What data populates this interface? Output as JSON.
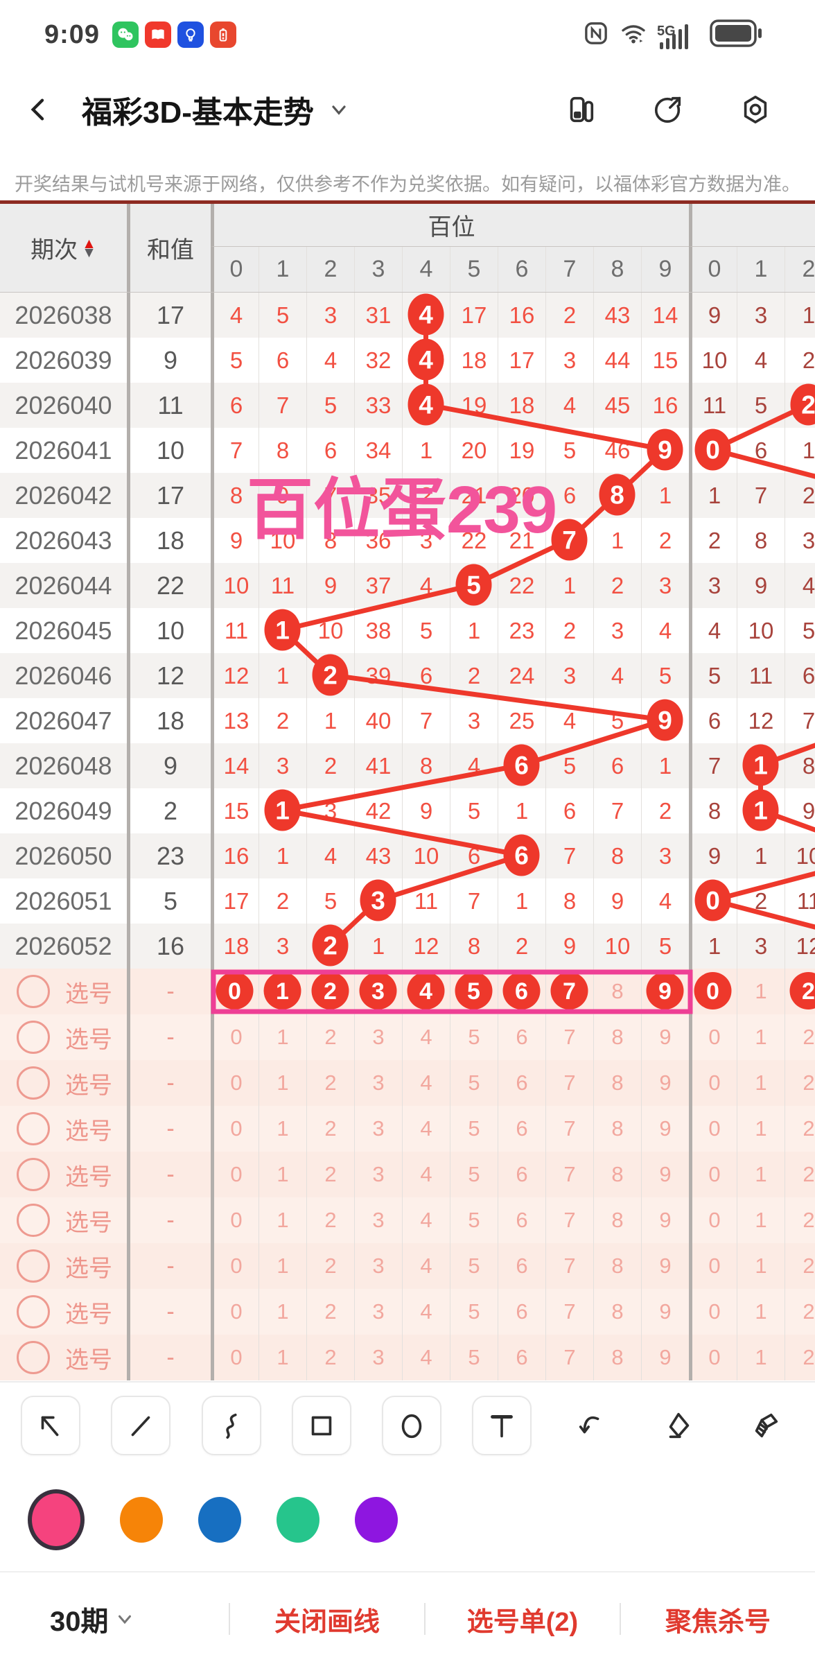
{
  "status_bar": {
    "time": "9:09",
    "app_icons": [
      "wechat-icon",
      "book-icon",
      "bulb-icon",
      "battery-alert-icon"
    ],
    "network_label": "5G"
  },
  "app_bar": {
    "title": "福彩3D-基本走势",
    "icons": [
      "split-screen-icon",
      "share-icon",
      "settings-icon"
    ]
  },
  "disclaimer": "开奖结果与试机号来源于网络，仅供参考不作为兑奖依据。如有疑问，以福体彩官方数据为准。",
  "trend_table": {
    "header": {
      "period": "期次",
      "sum": "和值",
      "section1": "百位",
      "section2": "",
      "ones_digits": [
        "0",
        "1",
        "2",
        "3",
        "4",
        "5",
        "6",
        "7",
        "8",
        "9"
      ],
      "tens_digits": [
        "0",
        "1",
        "2"
      ]
    },
    "rows": [
      {
        "period": "2026038",
        "sum": "17",
        "ones": [
          "4",
          "5",
          "3",
          "31",
          "4",
          "17",
          "16",
          "2",
          "43",
          "14"
        ],
        "tens": [
          "9",
          "3",
          "1"
        ],
        "hit": 4,
        "hit2": null
      },
      {
        "period": "2026039",
        "sum": "9",
        "ones": [
          "5",
          "6",
          "4",
          "32",
          "4",
          "18",
          "17",
          "3",
          "44",
          "15"
        ],
        "tens": [
          "10",
          "4",
          "2"
        ],
        "hit": 4,
        "hit2": null
      },
      {
        "period": "2026040",
        "sum": "11",
        "ones": [
          "6",
          "7",
          "5",
          "33",
          "4",
          "19",
          "18",
          "4",
          "45",
          "16"
        ],
        "tens": [
          "11",
          "5",
          "2"
        ],
        "hit": 4,
        "hit2": 2
      },
      {
        "period": "2026041",
        "sum": "10",
        "ones": [
          "7",
          "8",
          "6",
          "34",
          "1",
          "20",
          "19",
          "5",
          "46",
          "9"
        ],
        "tens": [
          "0",
          "6",
          "1"
        ],
        "hit": 9,
        "hit2": 0
      },
      {
        "period": "2026042",
        "sum": "17",
        "ones": [
          "8",
          "9",
          "7",
          "35",
          "2",
          "21",
          "20",
          "6",
          "8",
          "1"
        ],
        "tens": [
          "1",
          "7",
          "2"
        ],
        "hit": 8,
        "hit2": null
      },
      {
        "period": "2026043",
        "sum": "18",
        "ones": [
          "9",
          "10",
          "8",
          "36",
          "3",
          "22",
          "21",
          "7",
          "1",
          "2"
        ],
        "tens": [
          "2",
          "8",
          "3"
        ],
        "hit": 7,
        "hit2": null
      },
      {
        "period": "2026044",
        "sum": "22",
        "ones": [
          "10",
          "11",
          "9",
          "37",
          "4",
          "5",
          "22",
          "1",
          "2",
          "3"
        ],
        "tens": [
          "3",
          "9",
          "4"
        ],
        "hit": 5,
        "hit2": null
      },
      {
        "period": "2026045",
        "sum": "10",
        "ones": [
          "11",
          "1",
          "10",
          "38",
          "5",
          "1",
          "23",
          "2",
          "3",
          "4"
        ],
        "tens": [
          "4",
          "10",
          "5"
        ],
        "hit": 1,
        "hit2": null
      },
      {
        "period": "2026046",
        "sum": "12",
        "ones": [
          "12",
          "1",
          "2",
          "39",
          "6",
          "2",
          "24",
          "3",
          "4",
          "5"
        ],
        "tens": [
          "5",
          "11",
          "6"
        ],
        "hit": 2,
        "hit2": null
      },
      {
        "period": "2026047",
        "sum": "18",
        "ones": [
          "13",
          "2",
          "1",
          "40",
          "7",
          "3",
          "25",
          "4",
          "5",
          "9"
        ],
        "tens": [
          "6",
          "12",
          "7"
        ],
        "hit": 9,
        "hit2": null
      },
      {
        "period": "2026048",
        "sum": "9",
        "ones": [
          "14",
          "3",
          "2",
          "41",
          "8",
          "4",
          "6",
          "5",
          "6",
          "1"
        ],
        "tens": [
          "7",
          "1",
          "8"
        ],
        "hit": 6,
        "hit2": 1
      },
      {
        "period": "2026049",
        "sum": "2",
        "ones": [
          "15",
          "1",
          "3",
          "42",
          "9",
          "5",
          "1",
          "6",
          "7",
          "2"
        ],
        "tens": [
          "8",
          "1",
          "9"
        ],
        "hit": 1,
        "hit2": 1
      },
      {
        "period": "2026050",
        "sum": "23",
        "ones": [
          "16",
          "1",
          "4",
          "43",
          "10",
          "6",
          "6",
          "7",
          "8",
          "3"
        ],
        "tens": [
          "9",
          "1",
          "10"
        ],
        "hit": 6,
        "hit2": null
      },
      {
        "period": "2026051",
        "sum": "5",
        "ones": [
          "17",
          "2",
          "5",
          "3",
          "11",
          "7",
          "1",
          "8",
          "9",
          "4"
        ],
        "tens": [
          "0",
          "2",
          "11"
        ],
        "hit": 3,
        "hit2": 0
      },
      {
        "period": "2026052",
        "sum": "16",
        "ones": [
          "18",
          "3",
          "2",
          "1",
          "12",
          "8",
          "2",
          "9",
          "10",
          "5"
        ],
        "tens": [
          "1",
          "3",
          "12"
        ],
        "hit": 2,
        "hit2": null
      }
    ],
    "tens_line_segments": [
      [
        1,
        3.6,
        2,
        2
      ],
      [
        2,
        2,
        3,
        0
      ],
      [
        3,
        0,
        4,
        3.6
      ],
      [
        9,
        3.6,
        10,
        1
      ],
      [
        10,
        1,
        11,
        1
      ],
      [
        11,
        1,
        12,
        3.6
      ],
      [
        12,
        3.6,
        13,
        0
      ],
      [
        13,
        0,
        14,
        3.6
      ]
    ],
    "pick": {
      "label": "选号",
      "dash": "-",
      "row_count": 9,
      "ones_digits": [
        "0",
        "1",
        "2",
        "3",
        "4",
        "5",
        "6",
        "7",
        "8",
        "9"
      ],
      "tens_digits": [
        "0",
        "1",
        "2"
      ],
      "selected_ones": [
        0,
        1,
        2,
        3,
        4,
        5,
        6,
        7,
        9
      ],
      "selected_tens": [
        0,
        2
      ]
    }
  },
  "annotations": {
    "watermark": {
      "text": "百位蛋239",
      "color": "#f2549b"
    },
    "selection_box": {
      "color": "#ee3f95"
    },
    "line_color": "#ee382b"
  },
  "toolbar": {
    "tools": [
      {
        "name": "arrow-tool",
        "boxed": true
      },
      {
        "name": "line-tool",
        "boxed": true
      },
      {
        "name": "curve-tool",
        "boxed": true
      },
      {
        "name": "rectangle-tool",
        "boxed": true
      },
      {
        "name": "circle-tool",
        "boxed": true
      },
      {
        "name": "text-tool",
        "boxed": true
      },
      {
        "name": "undo",
        "boxed": false
      },
      {
        "name": "eraser",
        "boxed": false
      },
      {
        "name": "clear-all",
        "boxed": false
      }
    ]
  },
  "palette": {
    "colors": [
      "#f5437e",
      "#f68408",
      "#176fc1",
      "#26c58c",
      "#8e16e0"
    ],
    "selected_index": 0
  },
  "bottom_bar": {
    "period_selector": "30期",
    "actions": [
      "关闭画线",
      "选号单(2)",
      "聚焦杀号"
    ]
  }
}
